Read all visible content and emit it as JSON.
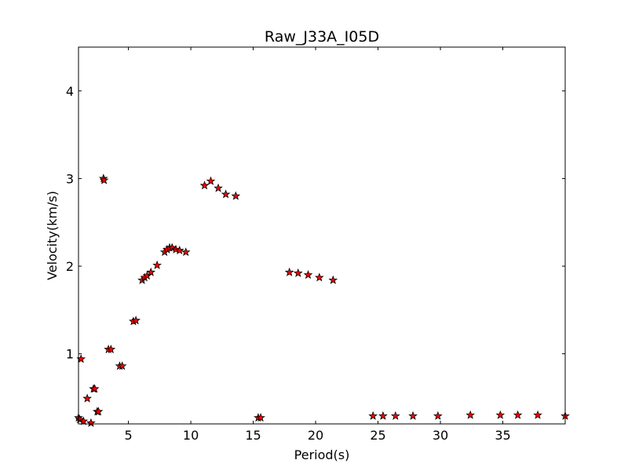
{
  "chart_data": {
    "type": "scatter",
    "title": "Raw_J33A_I05D",
    "xlabel": "Period(s)",
    "ylabel": "Velocity(km/s)",
    "xlim": [
      1,
      40
    ],
    "ylim": [
      0.2,
      4.5
    ],
    "x_ticks": [
      5,
      10,
      15,
      20,
      25,
      30,
      35
    ],
    "y_ticks": [
      1,
      2,
      3,
      4
    ],
    "grid": false,
    "marker": "star",
    "marker_color": "#ff0000",
    "marker_edge_color": "#000000",
    "series": [
      {
        "x": [
          1.0,
          1.1,
          1.2,
          1.4,
          1.7,
          2.0,
          2.2,
          2.3,
          2.5,
          2.6,
          3.0,
          3.05,
          3.4,
          3.6,
          4.3,
          4.5,
          5.4,
          5.6,
          6.1,
          6.3,
          6.5,
          6.8,
          7.3,
          7.9,
          8.1,
          8.3,
          8.5,
          8.8,
          9.1,
          9.6,
          11.1,
          11.6,
          12.2,
          12.8,
          13.6,
          15.4,
          15.6,
          17.9,
          18.6,
          19.4,
          20.3,
          21.4,
          24.6,
          25.4,
          26.4,
          27.8,
          29.8,
          32.4,
          34.8,
          36.2,
          37.8,
          40.0
        ],
        "y": [
          0.27,
          0.25,
          0.94,
          0.23,
          0.49,
          0.21,
          0.6,
          0.6,
          0.34,
          0.34,
          3.0,
          2.98,
          1.05,
          1.05,
          0.86,
          0.86,
          1.37,
          1.38,
          1.84,
          1.87,
          1.89,
          1.93,
          2.01,
          2.16,
          2.19,
          2.21,
          2.21,
          2.19,
          2.18,
          2.16,
          2.92,
          2.97,
          2.89,
          2.82,
          2.8,
          0.27,
          0.27,
          1.93,
          1.92,
          1.9,
          1.87,
          1.84,
          0.29,
          0.29,
          0.29,
          0.29,
          0.29,
          0.3,
          0.3,
          0.3,
          0.3,
          0.29
        ]
      }
    ]
  }
}
